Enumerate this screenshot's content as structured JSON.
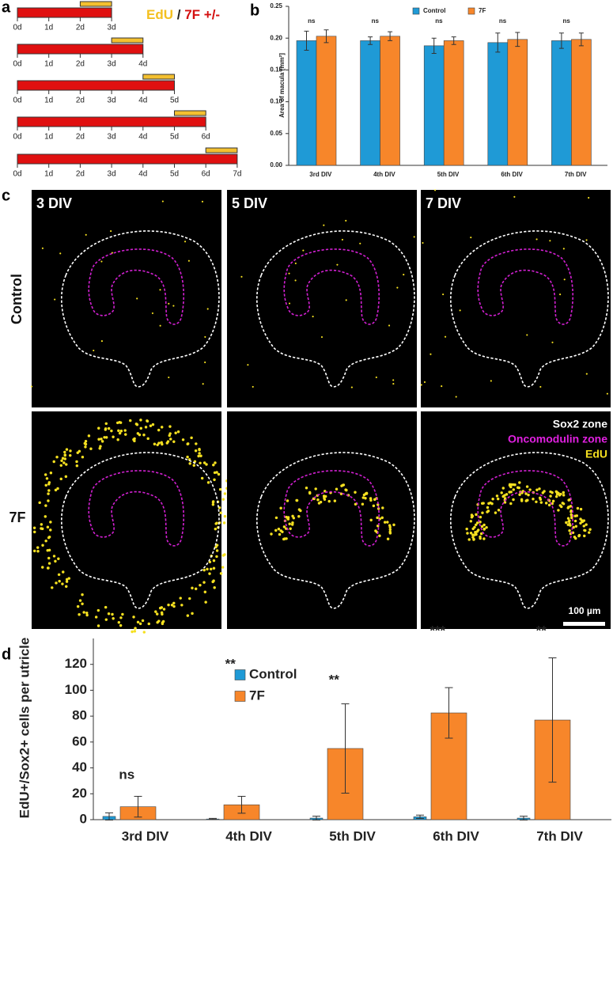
{
  "panel_labels": [
    "a",
    "b",
    "c",
    "d"
  ],
  "timeline": {
    "title_parts": [
      "EdU",
      "/",
      "7F +/-"
    ],
    "rows": [
      [
        "0d",
        "1d",
        "2d",
        "3d"
      ],
      [
        "0d",
        "1d",
        "2d",
        "3d",
        "4d"
      ],
      [
        "0d",
        "1d",
        "2d",
        "3d",
        "4d",
        "5d"
      ],
      [
        "0d",
        "1d",
        "2d",
        "3d",
        "4d",
        "5d",
        "6d"
      ],
      [
        "0d",
        "1d",
        "2d",
        "3d",
        "4d",
        "5d",
        "6d",
        "7d"
      ]
    ]
  },
  "images": {
    "column_labels": [
      "3 DIV",
      "5 DIV",
      "7 DIV"
    ],
    "row_labels": [
      "Control",
      "7F"
    ],
    "legend": [
      "Sox2 zone",
      "Oncomodulin zone",
      "EdU"
    ],
    "scale_bar": "100 µm"
  },
  "chart_data": [
    {
      "type": "bar",
      "y_label": "Area of macula [mm²]",
      "categories": [
        "3rd DIV",
        "4th DIV",
        "5th DIV",
        "6th DIV",
        "7th DIV"
      ],
      "series": [
        {
          "name": "Control",
          "color": "#1f9ad6",
          "values": [
            0.196,
            0.196,
            0.188,
            0.193,
            0.196
          ],
          "errors": [
            0.015,
            0.006,
            0.012,
            0.015,
            0.012
          ]
        },
        {
          "name": "7F",
          "color": "#f7862a",
          "values": [
            0.203,
            0.203,
            0.196,
            0.198,
            0.198
          ],
          "errors": [
            0.01,
            0.007,
            0.006,
            0.011,
            0.01
          ]
        }
      ],
      "annotations": [
        "ns",
        "ns",
        "ns",
        "ns",
        "ns"
      ],
      "ylim": [
        0,
        0.25
      ],
      "yticks": [
        {
          "value": 0,
          "label": "0.00"
        },
        {
          "value": 0.05,
          "label": "0.05"
        },
        {
          "value": 0.1,
          "label": "0.10"
        },
        {
          "value": 0.15,
          "label": "0.15"
        },
        {
          "value": 0.2,
          "label": "0.20"
        },
        {
          "value": 0.25,
          "label": "0.25"
        }
      ]
    },
    {
      "type": "bar",
      "y_label": "EdU+/Sox2+ cells per utricle",
      "categories": [
        "3rd DIV",
        "4th DIV",
        "5th DIV",
        "6th DIV",
        "7th DIV"
      ],
      "series": [
        {
          "name": "Control",
          "color": "#1f9ad6",
          "values": [
            2.5,
            0.5,
            1.2,
            2.2,
            1.2
          ],
          "errors": [
            2.8,
            0.5,
            1.5,
            1.3,
            1.5
          ]
        },
        {
          "name": "7F",
          "color": "#f7862a",
          "values": [
            10,
            11.5,
            55,
            82.5,
            77
          ],
          "errors": [
            8,
            6.5,
            34.5,
            19.5,
            48
          ]
        }
      ],
      "annotations": [
        "ns",
        "**",
        "**",
        "***",
        "**"
      ],
      "ylim": [
        0,
        140
      ],
      "yticks": [
        0,
        20,
        40,
        60,
        80,
        100,
        120
      ]
    }
  ]
}
